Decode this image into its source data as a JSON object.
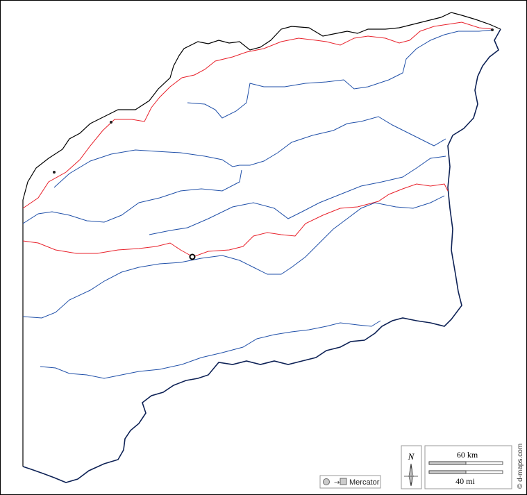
{
  "compass": {
    "north": "N"
  },
  "scale": {
    "km": "60 km",
    "mi": "40 mi"
  },
  "projection": "Mercator",
  "credit": "© d-maps.com"
}
